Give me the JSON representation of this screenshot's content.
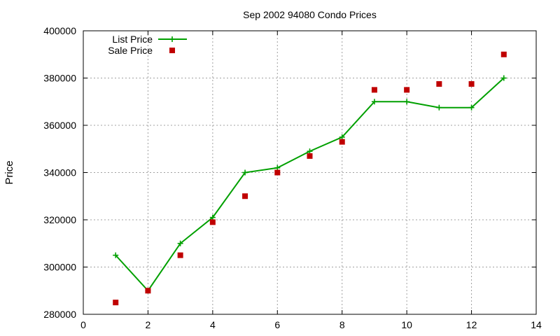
{
  "chart_data": {
    "type": "line",
    "title": "Sep 2002 94080 Condo Prices",
    "xlabel": "",
    "ylabel": "Price",
    "xlim": [
      0,
      14
    ],
    "ylim": [
      280000,
      400000
    ],
    "x_ticks": [
      0,
      2,
      4,
      6,
      8,
      10,
      12,
      14
    ],
    "y_ticks": [
      280000,
      300000,
      320000,
      340000,
      360000,
      380000,
      400000
    ],
    "grid": true,
    "legend_position": "top-left",
    "series": [
      {
        "name": "List Price",
        "style": "line-with-plus-markers",
        "color": "#00a000",
        "x": [
          1,
          2,
          3,
          4,
          5,
          6,
          7,
          8,
          9,
          10,
          11,
          12,
          13
        ],
        "y": [
          305000,
          290000,
          310000,
          321000,
          340000,
          342000,
          349000,
          355000,
          370000,
          370000,
          367500,
          367500,
          380000
        ]
      },
      {
        "name": "Sale Price",
        "style": "square-markers",
        "color": "#c00000",
        "x": [
          1,
          2,
          3,
          4,
          5,
          6,
          7,
          8,
          9,
          10,
          11,
          12,
          13
        ],
        "y": [
          285000,
          290000,
          305000,
          319000,
          330000,
          340000,
          347000,
          353000,
          375000,
          375000,
          377500,
          377500,
          390000
        ]
      }
    ]
  }
}
